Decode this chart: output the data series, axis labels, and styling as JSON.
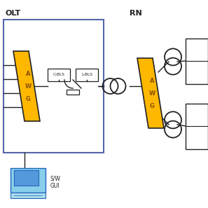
{
  "bg_color": "#ffffff",
  "awg_color": "#FFB800",
  "awg_text_color": "#8B5000",
  "line_color": "#222222",
  "olt_box_ec": "#555588",
  "olt_label": "OLT",
  "rn_label": "RN",
  "cbls_label": "C-BLS",
  "lbls_label": "L-BLS",
  "sw_label": "S/W\nGUI"
}
